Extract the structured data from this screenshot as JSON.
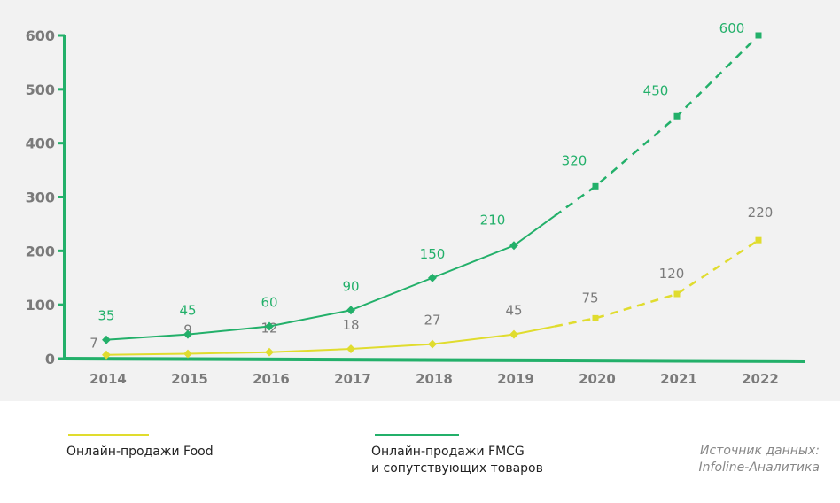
{
  "chart_data": {
    "type": "line",
    "categories": [
      "2014",
      "2015",
      "2016",
      "2017",
      "2018",
      "2019",
      "2020",
      "2021",
      "2022"
    ],
    "ylim": [
      0,
      600
    ],
    "yticks": [
      "0",
      "100",
      "200",
      "300",
      "400",
      "500",
      "600"
    ],
    "grid": false,
    "legend_placement": "bottom",
    "series": [
      {
        "name": "Онлайн-продажи Food",
        "color": "#e0dc2e",
        "label_color": "#7a7a7a",
        "values": [
          7,
          9,
          12,
          18,
          27,
          45,
          75,
          120,
          220
        ],
        "labels": [
          "7",
          "9",
          "12",
          "18",
          "27",
          "45",
          "75",
          "120",
          "220"
        ],
        "forecast_from": "2019"
      },
      {
        "name": "Онлайн-продажи FMCG и сопутствующих  товаров",
        "name_lines": [
          "Онлайн-продажи FMCG",
          "и сопутствующих  товаров"
        ],
        "color": "#23b06a",
        "label_color": "#23b06a",
        "values": [
          35,
          45,
          60,
          90,
          150,
          210,
          320,
          450,
          600
        ],
        "labels": [
          "35",
          "45",
          "60",
          "90",
          "150",
          "210",
          "320",
          "450",
          "600"
        ],
        "forecast_from": "2019"
      }
    ],
    "axis_color": "#23b06a",
    "tick_label_color": "#7a7a7a"
  },
  "source": {
    "line1": "Источник данных:",
    "line2": "Infoline-Аналитика"
  }
}
